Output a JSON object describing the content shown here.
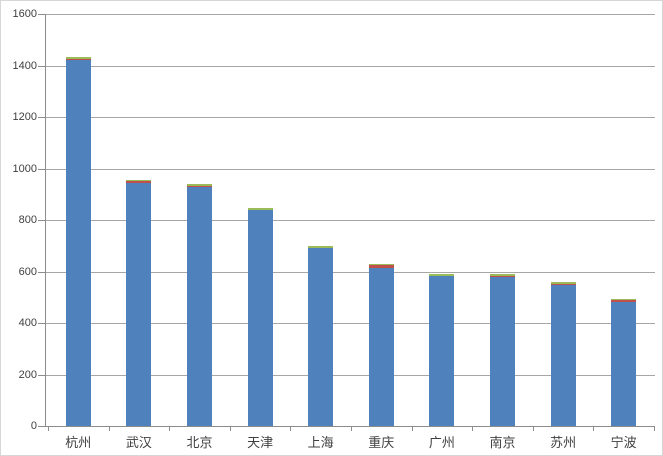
{
  "chart_data": {
    "type": "bar",
    "stacked": true,
    "title": "",
    "xlabel": "",
    "ylabel": "",
    "categories": [
      "杭州",
      "武汉",
      "北京",
      "天津",
      "上海",
      "重庆",
      "广州",
      "南京",
      "苏州",
      "宁波"
    ],
    "series": [
      {
        "name": "blue",
        "color": "#4f81bd",
        "values": [
          1420,
          944,
          930,
          839,
          690,
          614,
          582,
          577,
          549,
          480
        ]
      },
      {
        "name": "red",
        "color": "#c0504d",
        "values": [
          6,
          8,
          3,
          1,
          2,
          12,
          2,
          7,
          4,
          8
        ]
      },
      {
        "name": "green",
        "color": "#9bbb59",
        "values": [
          8,
          4,
          8,
          6,
          6,
          4,
          8,
          6,
          6,
          7
        ]
      }
    ],
    "totals": [
      1434,
      956,
      941,
      846,
      698,
      630,
      592,
      590,
      559,
      495
    ],
    "ylim": [
      0,
      1600
    ],
    "ytick_step": 200,
    "ytick_labels": [
      "0",
      "200",
      "400",
      "600",
      "800",
      "1000",
      "1200",
      "1400",
      "1600"
    ],
    "grid": true,
    "legend": false
  },
  "colors": {
    "gridline": "#a6a6a6",
    "axis": "#8c8c8c",
    "label": "#404040",
    "bar_blue": "#4f81bd",
    "bar_red": "#c0504d",
    "bar_green": "#9bbb59",
    "background": "#ffffff",
    "border": "#d6d6d6"
  }
}
